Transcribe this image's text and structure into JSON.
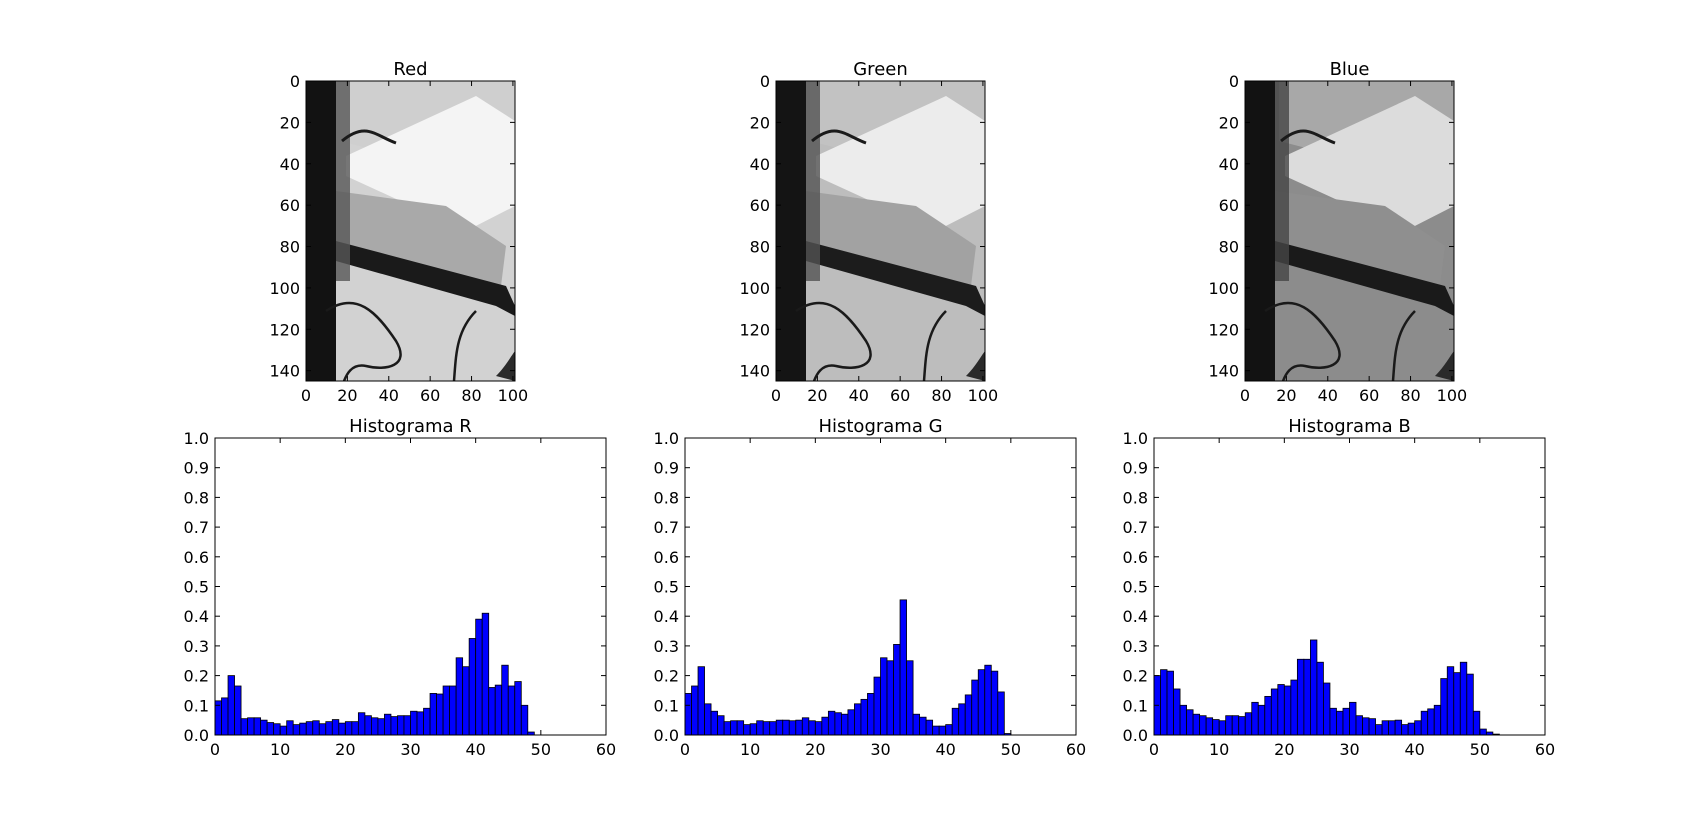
{
  "colors": {
    "background": "#ffffff",
    "bar_fill": "#0000ff",
    "bar_edge": "#000000",
    "axes": "#000000"
  },
  "chart_data": [
    {
      "type": "image",
      "title": "Red",
      "channel": "red",
      "xlim": [
        0,
        101
      ],
      "ylim": [
        145,
        0
      ],
      "xticks": [
        0,
        20,
        40,
        60,
        80,
        100
      ],
      "yticks": [
        0,
        20,
        40,
        60,
        80,
        100,
        120,
        140
      ]
    },
    {
      "type": "image",
      "title": "Green",
      "channel": "green",
      "xlim": [
        0,
        101
      ],
      "ylim": [
        145,
        0
      ],
      "xticks": [
        0,
        20,
        40,
        60,
        80,
        100
      ],
      "yticks": [
        0,
        20,
        40,
        60,
        80,
        100,
        120,
        140
      ]
    },
    {
      "type": "image",
      "title": "Blue",
      "channel": "blue",
      "xlim": [
        0,
        101
      ],
      "ylim": [
        145,
        0
      ],
      "xticks": [
        0,
        20,
        40,
        60,
        80,
        100
      ],
      "yticks": [
        0,
        20,
        40,
        60,
        80,
        100,
        120,
        140
      ]
    },
    {
      "type": "bar",
      "title": "Histograma R",
      "xlim": [
        0,
        60
      ],
      "ylim": [
        0,
        1.0
      ],
      "xticks": [
        0,
        10,
        20,
        30,
        40,
        50,
        60
      ],
      "yticks": [
        "0.0",
        "0.1",
        "0.2",
        "0.3",
        "0.4",
        "0.5",
        "0.6",
        "0.7",
        "0.8",
        "0.9",
        "1.0"
      ],
      "values": [
        0.115,
        0.125,
        0.2,
        0.165,
        0.055,
        0.058,
        0.058,
        0.05,
        0.042,
        0.038,
        0.03,
        0.048,
        0.035,
        0.04,
        0.045,
        0.048,
        0.038,
        0.045,
        0.052,
        0.04,
        0.045,
        0.045,
        0.075,
        0.065,
        0.058,
        0.055,
        0.07,
        0.062,
        0.065,
        0.065,
        0.08,
        0.078,
        0.09,
        0.14,
        0.138,
        0.165,
        0.165,
        0.26,
        0.23,
        0.325,
        0.39,
        0.41,
        0.16,
        0.168,
        0.235,
        0.165,
        0.18,
        0.1,
        0.01,
        0.0,
        0.0,
        0.0,
        0.0,
        0.0,
        0.0,
        0.0,
        0.0,
        0.0,
        0.0,
        0.0
      ]
    },
    {
      "type": "bar",
      "title": "Histograma G",
      "xlim": [
        0,
        60
      ],
      "ylim": [
        0,
        1.0
      ],
      "xticks": [
        0,
        10,
        20,
        30,
        40,
        50,
        60
      ],
      "yticks": [
        "0.0",
        "0.1",
        "0.2",
        "0.3",
        "0.4",
        "0.5",
        "0.6",
        "0.7",
        "0.8",
        "0.9",
        "1.0"
      ],
      "values": [
        0.14,
        0.165,
        0.23,
        0.105,
        0.08,
        0.065,
        0.045,
        0.048,
        0.048,
        0.035,
        0.038,
        0.048,
        0.045,
        0.045,
        0.05,
        0.05,
        0.048,
        0.05,
        0.058,
        0.048,
        0.045,
        0.06,
        0.08,
        0.075,
        0.07,
        0.085,
        0.105,
        0.12,
        0.14,
        0.195,
        0.26,
        0.25,
        0.305,
        0.455,
        0.25,
        0.07,
        0.06,
        0.05,
        0.03,
        0.03,
        0.035,
        0.09,
        0.105,
        0.135,
        0.185,
        0.22,
        0.235,
        0.215,
        0.145,
        0.005,
        0.0,
        0.0,
        0.0,
        0.0,
        0.0,
        0.0,
        0.0,
        0.0,
        0.0,
        0.0
      ]
    },
    {
      "type": "bar",
      "title": "Histograma B",
      "xlim": [
        0,
        60
      ],
      "ylim": [
        0,
        1.0
      ],
      "xticks": [
        0,
        10,
        20,
        30,
        40,
        50,
        60
      ],
      "yticks": [
        "0.0",
        "0.1",
        "0.2",
        "0.3",
        "0.4",
        "0.5",
        "0.6",
        "0.7",
        "0.8",
        "0.9",
        "1.0"
      ],
      "values": [
        0.2,
        0.22,
        0.215,
        0.155,
        0.1,
        0.085,
        0.07,
        0.065,
        0.058,
        0.052,
        0.048,
        0.065,
        0.065,
        0.062,
        0.075,
        0.11,
        0.1,
        0.13,
        0.155,
        0.17,
        0.165,
        0.185,
        0.255,
        0.255,
        0.32,
        0.245,
        0.175,
        0.09,
        0.08,
        0.09,
        0.11,
        0.065,
        0.058,
        0.055,
        0.035,
        0.048,
        0.048,
        0.05,
        0.035,
        0.04,
        0.048,
        0.08,
        0.088,
        0.1,
        0.19,
        0.23,
        0.21,
        0.245,
        0.205,
        0.08,
        0.02,
        0.01,
        0.003,
        0.0,
        0.0,
        0.0,
        0.0,
        0.0,
        0.0,
        0.0
      ]
    }
  ]
}
